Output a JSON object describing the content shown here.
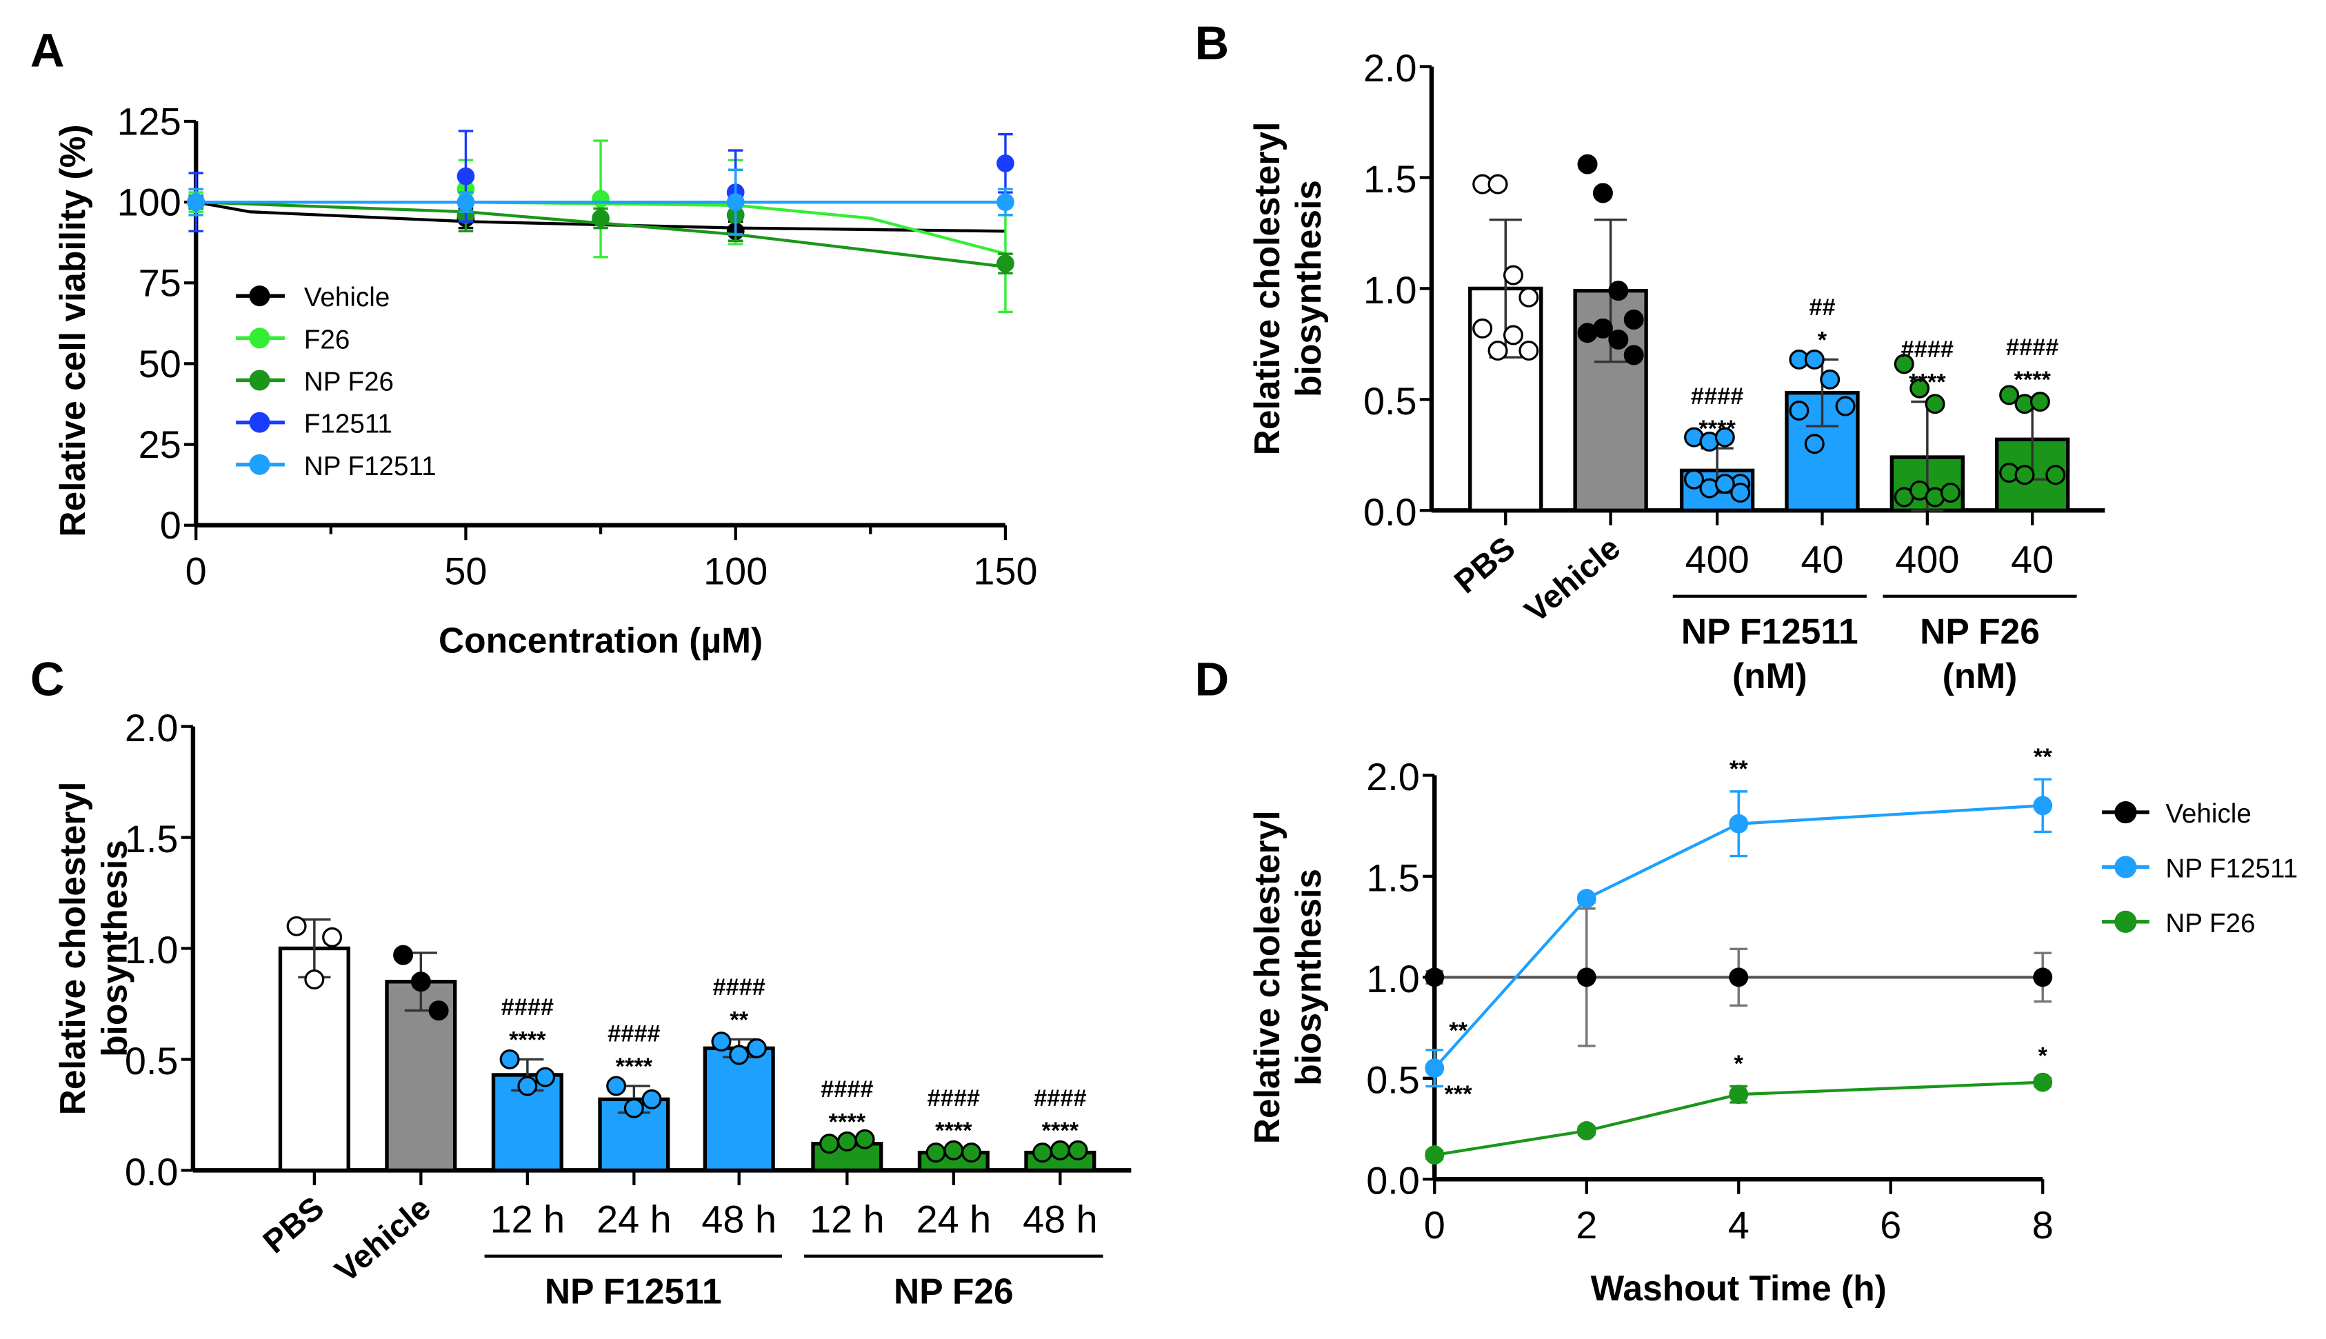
{
  "chart_data": [
    {
      "panel": "A",
      "type": "line",
      "xlabel": "Concentration (µM)",
      "ylabel": "Relative cell viability (%)",
      "xlim": [
        0,
        150
      ],
      "ylim": [
        0,
        125
      ],
      "xticks": [
        0,
        50,
        100,
        150
      ],
      "yticks": [
        0,
        25,
        50,
        75,
        100,
        125
      ],
      "legend_position": "center-left",
      "series": [
        {
          "name": "Vehicle",
          "color": "#000000",
          "x": [
            0,
            50,
            100
          ],
          "y": [
            100,
            95,
            91
          ],
          "err": [
            2,
            3,
            3
          ],
          "fit_x": [
            0,
            10,
            50,
            100,
            150
          ],
          "fit_y": [
            100,
            97,
            94,
            92,
            91
          ]
        },
        {
          "name": "F26",
          "color": "#33ee33",
          "x": [
            0,
            50,
            75,
            100,
            150
          ],
          "y": [
            100,
            104,
            101,
            100,
            81
          ],
          "err": [
            3,
            9,
            18,
            13,
            15
          ],
          "fit_x": [
            0,
            50,
            100,
            125,
            150
          ],
          "fit_y": [
            100,
            100,
            99,
            95,
            84
          ]
        },
        {
          "name": "NP F26",
          "color": "#1a961a",
          "x": [
            0,
            50,
            75,
            100,
            150
          ],
          "y": [
            100,
            96,
            95,
            96,
            81
          ],
          "err": [
            2,
            5,
            3,
            8,
            3
          ],
          "fit_x": [
            0,
            50,
            100,
            150
          ],
          "fit_y": [
            100,
            97,
            90,
            80
          ]
        },
        {
          "name": "F12511",
          "color": "#1a3cff",
          "x": [
            0,
            50,
            100,
            150
          ],
          "y": [
            100,
            108,
            103,
            112
          ],
          "err": [
            9,
            14,
            13,
            9
          ],
          "fit_x": [
            0,
            150
          ],
          "fit_y": [
            100,
            100
          ]
        },
        {
          "name": "NP F12511",
          "color": "#1ea0ff",
          "x": [
            0,
            50,
            100,
            150
          ],
          "y": [
            100,
            100,
            100,
            100
          ],
          "err": [
            4,
            3,
            10,
            4
          ],
          "fit_x": [
            0,
            150
          ],
          "fit_y": [
            100,
            100
          ]
        }
      ]
    },
    {
      "panel": "B",
      "type": "bar",
      "ylabel": [
        "Relative cholesteryl",
        "biosynthesis"
      ],
      "ylim": [
        0,
        2.0
      ],
      "yticks": [
        "0.0",
        "0.5",
        "1.0",
        "1.5",
        "2.0"
      ],
      "categories": [
        "PBS",
        "Vehicle",
        "400",
        "40",
        "400",
        "40"
      ],
      "groups": [
        {
          "label": "NP F12511",
          "unit": "(nM)",
          "from": 2,
          "to": 3
        },
        {
          "label": "NP F26",
          "unit": "(nM)",
          "from": 4,
          "to": 5
        }
      ],
      "rotated_categories": [
        0,
        1
      ],
      "bars": [
        {
          "value": 1.0,
          "sd": 0.31,
          "fill": "#ffffff",
          "point_fill": "#ffffff",
          "points": [
            1.47,
            1.47,
            1.06,
            0.96,
            0.82,
            0.72,
            0.79,
            0.72
          ],
          "annotations": []
        },
        {
          "value": 0.99,
          "sd": 0.32,
          "fill": "#8c8c8c",
          "point_fill": "#000000",
          "points": [
            1.56,
            1.43,
            0.99,
            0.86,
            0.8,
            0.82,
            0.77,
            0.7
          ],
          "annotations": []
        },
        {
          "value": 0.18,
          "sd": 0.1,
          "fill": "#1ea0ff",
          "point_fill": "#1ea0ff",
          "points": [
            0.33,
            0.31,
            0.33,
            0.12,
            0.14,
            0.1,
            0.12,
            0.08,
            0.14
          ],
          "annotations": [
            "####",
            "****"
          ]
        },
        {
          "value": 0.53,
          "sd": 0.15,
          "fill": "#1ea0ff",
          "point_fill": "#1ea0ff",
          "points": [
            0.68,
            0.68,
            0.59,
            0.47,
            0.45,
            0.3
          ],
          "annotations": [
            "##",
            "*"
          ]
        },
        {
          "value": 0.24,
          "sd": 0.25,
          "fill": "#1a961a",
          "point_fill": "#1a961a",
          "points": [
            0.66,
            0.55,
            0.48,
            0.08,
            0.06,
            0.09,
            0.06,
            0.08
          ],
          "annotations": [
            "####",
            "****"
          ]
        },
        {
          "value": 0.32,
          "sd": 0.18,
          "fill": "#1a961a",
          "point_fill": "#1a961a",
          "points": [
            0.52,
            0.48,
            0.49,
            0.16,
            0.17,
            0.16
          ],
          "annotations": [
            "####",
            "****"
          ]
        }
      ]
    },
    {
      "panel": "C",
      "type": "bar",
      "ylabel": [
        "Relative cholesteryl",
        "biosynthesis"
      ],
      "ylim": [
        0,
        2.0
      ],
      "yticks": [
        "0.0",
        "0.5",
        "1.0",
        "1.5",
        "2.0"
      ],
      "categories": [
        "PBS",
        "Vehicle",
        "12 h",
        "24 h",
        "48 h",
        "12 h",
        "24 h",
        "48 h"
      ],
      "groups": [
        {
          "label": "NP F12511",
          "unit": "",
          "from": 2,
          "to": 4
        },
        {
          "label": "NP F26",
          "unit": "",
          "from": 5,
          "to": 7
        }
      ],
      "rotated_categories": [
        0,
        1
      ],
      "bars": [
        {
          "value": 1.0,
          "sd": 0.13,
          "fill": "#ffffff",
          "point_fill": "#ffffff",
          "points": [
            1.1,
            0.86,
            1.05
          ],
          "annotations": []
        },
        {
          "value": 0.85,
          "sd": 0.13,
          "fill": "#8c8c8c",
          "point_fill": "#000000",
          "points": [
            0.97,
            0.85,
            0.72
          ],
          "annotations": []
        },
        {
          "value": 0.43,
          "sd": 0.07,
          "fill": "#1ea0ff",
          "point_fill": "#1ea0ff",
          "points": [
            0.5,
            0.38,
            0.42
          ],
          "annotations": [
            "####",
            "****"
          ]
        },
        {
          "value": 0.32,
          "sd": 0.06,
          "fill": "#1ea0ff",
          "point_fill": "#1ea0ff",
          "points": [
            0.38,
            0.28,
            0.32
          ],
          "annotations": [
            "####",
            "****"
          ]
        },
        {
          "value": 0.55,
          "sd": 0.04,
          "fill": "#1ea0ff",
          "point_fill": "#1ea0ff",
          "points": [
            0.58,
            0.52,
            0.55
          ],
          "annotations": [
            "####",
            "**"
          ]
        },
        {
          "value": 0.12,
          "sd": 0.01,
          "fill": "#1a961a",
          "point_fill": "#1a961a",
          "points": [
            0.12,
            0.13,
            0.14
          ],
          "annotations": [
            "####",
            "****"
          ]
        },
        {
          "value": 0.08,
          "sd": 0.01,
          "fill": "#1a961a",
          "point_fill": "#1a961a",
          "points": [
            0.08,
            0.09,
            0.08
          ],
          "annotations": [
            "####",
            "****"
          ]
        },
        {
          "value": 0.08,
          "sd": 0.01,
          "fill": "#1a961a",
          "point_fill": "#1a961a",
          "points": [
            0.08,
            0.09,
            0.09
          ],
          "annotations": [
            "####",
            "****"
          ]
        }
      ]
    },
    {
      "panel": "D",
      "type": "line",
      "xlabel": "Washout Time (h)",
      "ylabel": [
        "Relative cholesteryl",
        "biosynthesis"
      ],
      "xlim": [
        0,
        8
      ],
      "ylim": [
        0,
        2.0
      ],
      "xticks": [
        "0",
        "2",
        "4",
        "6",
        "8"
      ],
      "yticks": [
        "0.0",
        "0.5",
        "1.0",
        "1.5",
        "2.0"
      ],
      "legend_position": "right",
      "x": [
        0,
        2,
        4,
        8
      ],
      "series": [
        {
          "name": "Vehicle",
          "color": "#000000",
          "errcolor": "#777777",
          "y": [
            1.0,
            1.0,
            1.0,
            1.0
          ],
          "err": [
            0.03,
            0.34,
            0.14,
            0.12
          ],
          "annotations": [
            "",
            "",
            "",
            ""
          ]
        },
        {
          "name": "NP F12511",
          "color": "#1ea0ff",
          "errcolor": "#1ea0ff",
          "y": [
            0.55,
            1.39,
            1.76,
            1.85
          ],
          "err": [
            0.09,
            0.02,
            0.16,
            0.13
          ],
          "annotations": [
            "**",
            "",
            "**",
            "**"
          ]
        },
        {
          "name": "NP F26",
          "color": "#1a961a",
          "errcolor": "#1a961a",
          "y": [
            0.12,
            0.24,
            0.42,
            0.48
          ],
          "err": [
            0.02,
            0.02,
            0.04,
            0.02
          ],
          "annotations": [
            "***",
            "",
            "*",
            "*"
          ]
        }
      ]
    }
  ]
}
